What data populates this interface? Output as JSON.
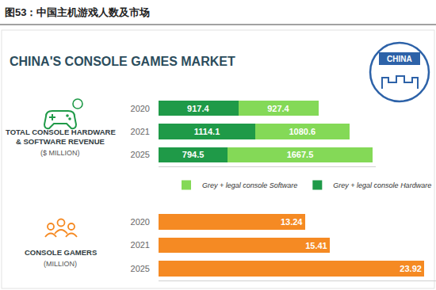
{
  "figure_title": "图53：中国主机游戏人数及市场",
  "banner": "CHINA'S CONSOLE GAMES MARKET",
  "badge": "CHINA",
  "chart_data": [
    {
      "type": "bar",
      "orientation": "horizontal",
      "stacked": true,
      "title": "TOTAL CONSOLE HARDWARE & SOFTWARE REVENUE",
      "subtitle": "($ MILLION)",
      "categories": [
        "2020",
        "2021",
        "2025"
      ],
      "series": [
        {
          "name": "Grey + legal console Hardware",
          "color": "#1f9a48",
          "values": [
            917.4,
            1114.1,
            794.5
          ]
        },
        {
          "name": "Grey + legal console Software",
          "color": "#84d957",
          "values": [
            927.4,
            1080.6,
            1667.5
          ]
        }
      ],
      "xlim": [
        0,
        2500
      ],
      "tick_labels": "y",
      "data_labels": true,
      "legend": "bottom",
      "grid": false
    },
    {
      "type": "bar",
      "orientation": "horizontal",
      "title": "CONSOLE GAMERS",
      "subtitle": "(MILLION)",
      "categories": [
        "2020",
        "2021",
        "2025"
      ],
      "values": [
        13.24,
        15.41,
        23.92
      ],
      "color": "#f58a23",
      "xlim": [
        0,
        25
      ],
      "tick_labels": "y",
      "data_labels": true,
      "grid": false
    }
  ]
}
